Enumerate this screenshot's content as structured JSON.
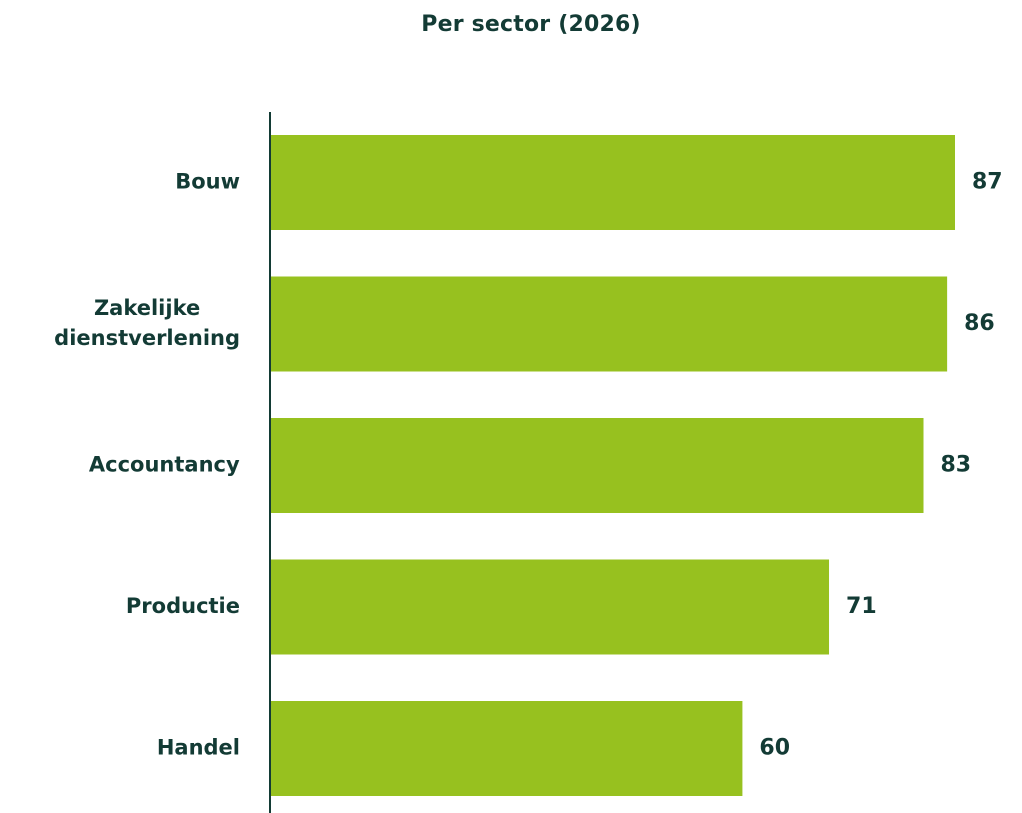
{
  "colors": {
    "bar": "#97c11f",
    "text": "#133b35",
    "axis": "#133b35"
  },
  "chart_data": {
    "type": "bar",
    "orientation": "horizontal",
    "title": "Per sector (2026)",
    "categories": [
      [
        "Bouw"
      ],
      [
        "Zakelijke",
        "dienstverlening"
      ],
      [
        "Accountancy"
      ],
      [
        "Productie"
      ],
      [
        "Handel"
      ]
    ],
    "values": [
      87,
      86,
      83,
      71,
      60
    ],
    "value_labels": [
      "87",
      "86",
      "83",
      "71",
      "60"
    ],
    "xlim": [
      0,
      100
    ],
    "grid": false,
    "legend": "none"
  }
}
